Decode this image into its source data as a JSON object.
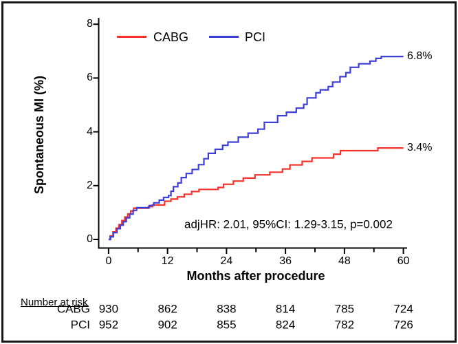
{
  "chart_data": {
    "type": "line",
    "subtype": "step-cumulative-incidence",
    "title": "",
    "xlabel": "Months after procedure",
    "ylabel": "Spontaneous MI (%)",
    "xlim": [
      0,
      60
    ],
    "ylim": [
      0,
      8
    ],
    "x_major_ticks": [
      0,
      12,
      24,
      36,
      48,
      60
    ],
    "x_minor_ticks": [
      6,
      18,
      30,
      42,
      54
    ],
    "y_ticks": [
      0,
      2,
      4,
      6,
      8
    ],
    "grid": "off",
    "legend_position": "top-inside",
    "annotation": "adjHR: 2.01, 95%CI: 1.29-3.15, p=0.002",
    "series": [
      {
        "name": "CABG",
        "color": "#f5332b",
        "end_label": "3.4%",
        "final_value_pct": 3.4,
        "points": [
          [
            0,
            0
          ],
          [
            0.3,
            0.13
          ],
          [
            0.9,
            0.28
          ],
          [
            1.5,
            0.42
          ],
          [
            2.1,
            0.55
          ],
          [
            2.7,
            0.7
          ],
          [
            3.3,
            0.83
          ],
          [
            3.9,
            0.95
          ],
          [
            4.5,
            1.06
          ],
          [
            5.1,
            1.16
          ],
          [
            8.1,
            1.22
          ],
          [
            8.9,
            1.28
          ],
          [
            11.4,
            1.42
          ],
          [
            12.7,
            1.5
          ],
          [
            14,
            1.58
          ],
          [
            15.4,
            1.68
          ],
          [
            16.9,
            1.78
          ],
          [
            18.4,
            1.86
          ],
          [
            22.3,
            1.93
          ],
          [
            23.4,
            2.05
          ],
          [
            25.4,
            2.17
          ],
          [
            27.4,
            2.28
          ],
          [
            29.8,
            2.4
          ],
          [
            32.8,
            2.5
          ],
          [
            35.4,
            2.62
          ],
          [
            36.9,
            2.77
          ],
          [
            39.4,
            2.9
          ],
          [
            41.4,
            3.03
          ],
          [
            45.8,
            3.17
          ],
          [
            47.2,
            3.3
          ],
          [
            54.8,
            3.4
          ],
          [
            60,
            3.4
          ]
        ]
      },
      {
        "name": "PCI",
        "color": "#3d3dd8",
        "end_label": "6.8%",
        "final_value_pct": 6.8,
        "points": [
          [
            0,
            0
          ],
          [
            0.4,
            0.1
          ],
          [
            1,
            0.25
          ],
          [
            1.7,
            0.4
          ],
          [
            2.4,
            0.53
          ],
          [
            3,
            0.66
          ],
          [
            3.6,
            0.8
          ],
          [
            4.3,
            0.94
          ],
          [
            5,
            1.08
          ],
          [
            5.7,
            1.18
          ],
          [
            8.3,
            1.26
          ],
          [
            9.2,
            1.36
          ],
          [
            10.3,
            1.46
          ],
          [
            11.2,
            1.56
          ],
          [
            12.2,
            1.63
          ],
          [
            12.7,
            1.79
          ],
          [
            13.2,
            1.96
          ],
          [
            14.1,
            2.1
          ],
          [
            14.8,
            2.3
          ],
          [
            15.8,
            2.45
          ],
          [
            17,
            2.6
          ],
          [
            18.3,
            2.78
          ],
          [
            19.4,
            3.0
          ],
          [
            20.3,
            3.2
          ],
          [
            21.7,
            3.35
          ],
          [
            23.2,
            3.5
          ],
          [
            24.3,
            3.62
          ],
          [
            26.4,
            3.8
          ],
          [
            28.4,
            3.95
          ],
          [
            30.4,
            4.1
          ],
          [
            31.7,
            4.35
          ],
          [
            34.4,
            4.6
          ],
          [
            36.2,
            4.73
          ],
          [
            38.2,
            4.88
          ],
          [
            39.7,
            5.02
          ],
          [
            40.4,
            5.26
          ],
          [
            42.2,
            5.45
          ],
          [
            43.1,
            5.56
          ],
          [
            44.7,
            5.68
          ],
          [
            45.6,
            5.85
          ],
          [
            47.1,
            6.05
          ],
          [
            48.3,
            6.2
          ],
          [
            49.2,
            6.4
          ],
          [
            50.9,
            6.53
          ],
          [
            53.2,
            6.63
          ],
          [
            54.4,
            6.73
          ],
          [
            55.5,
            6.8
          ],
          [
            60,
            6.8
          ]
        ]
      }
    ],
    "number_at_risk": {
      "heading": "Number at risk",
      "time_points": [
        0,
        12,
        24,
        36,
        48,
        60
      ],
      "rows": [
        {
          "label": "CABG",
          "values": [
            930,
            862,
            838,
            814,
            785,
            724
          ]
        },
        {
          "label": "PCI",
          "values": [
            952,
            902,
            855,
            824,
            782,
            726
          ]
        }
      ]
    }
  },
  "colors": {
    "cabg": "#f5332b",
    "pci": "#3d3dd8",
    "axis": "#000000",
    "frame_border": "#161616"
  }
}
